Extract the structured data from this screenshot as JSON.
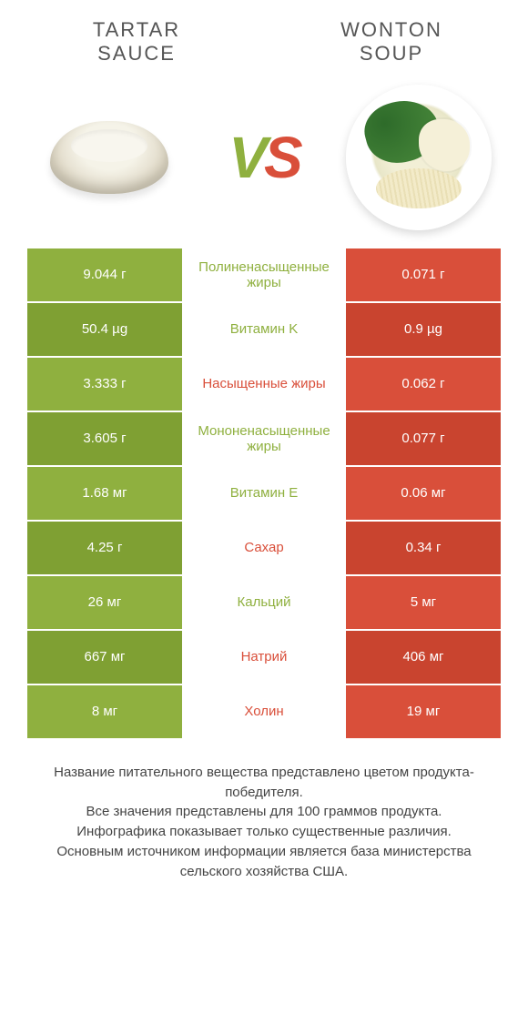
{
  "colors": {
    "left": "#8fb03f",
    "right": "#d94f3a",
    "left_dark": "#7fa033",
    "right_dark": "#c9442f"
  },
  "titles": {
    "left_line1": "Tartar",
    "left_line2": "sauce",
    "right_line1": "Wonton",
    "right_line2": "soup"
  },
  "vs": {
    "v": "V",
    "s": "S"
  },
  "rows": [
    {
      "left": "9.044 г",
      "label": "Полиненасыщенные жиры",
      "right": "0.071 г",
      "winner": "left"
    },
    {
      "left": "50.4 µg",
      "label": "Витамин K",
      "right": "0.9 µg",
      "winner": "left"
    },
    {
      "left": "3.333 г",
      "label": "Насыщенные жиры",
      "right": "0.062 г",
      "winner": "right"
    },
    {
      "left": "3.605 г",
      "label": "Мононенасыщенные жиры",
      "right": "0.077 г",
      "winner": "left"
    },
    {
      "left": "1.68 мг",
      "label": "Витамин E",
      "right": "0.06 мг",
      "winner": "left"
    },
    {
      "left": "4.25 г",
      "label": "Сахар",
      "right": "0.34 г",
      "winner": "right"
    },
    {
      "left": "26 мг",
      "label": "Кальций",
      "right": "5 мг",
      "winner": "left"
    },
    {
      "left": "667 мг",
      "label": "Натрий",
      "right": "406 мг",
      "winner": "right"
    },
    {
      "left": "8 мг",
      "label": "Холин",
      "right": "19 мг",
      "winner": "right"
    }
  ],
  "footer": {
    "l1": "Название питательного вещества представлено цветом продукта-победителя.",
    "l2": "Все значения представлены для 100 граммов продукта.",
    "l3": "Инфографика показывает только существенные различия.",
    "l4": "Основным источником информации является база министерства сельского хозяйства США."
  }
}
